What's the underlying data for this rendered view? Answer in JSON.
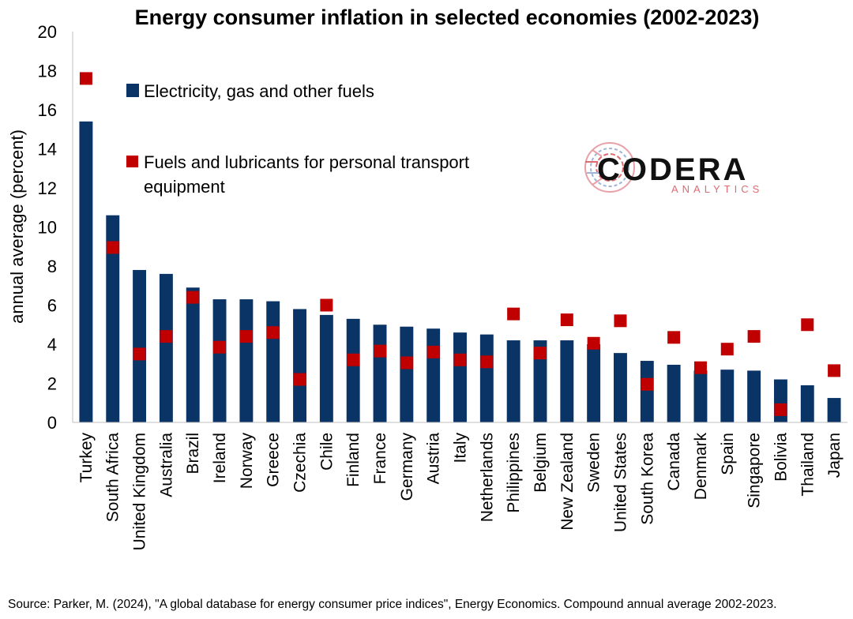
{
  "chart_data": {
    "type": "bar",
    "title": "Energy consumer inflation in selected economies (2002-2023)",
    "ylabel": "annual average (percent)",
    "xlabel": "",
    "ylim": [
      0,
      20
    ],
    "yticks": [
      "0",
      "2",
      "4",
      "6",
      "8",
      "10",
      "12",
      "14",
      "16",
      "18",
      "20"
    ],
    "categories": [
      "Turkey",
      "South Africa",
      "United Kingdom",
      "Australia",
      "Brazil",
      "Ireland",
      "Norway",
      "Greece",
      "Czechia",
      "Chile",
      "Finland",
      "France",
      "Germany",
      "Austria",
      "Italy",
      "Netherlands",
      "Philippines",
      "Belgium",
      "New Zealand",
      "Sweden",
      "United States",
      "South Korea",
      "Canada",
      "Denmark",
      "Spain",
      "Singapore",
      "Bolivia",
      "Thailand",
      "Japan"
    ],
    "series": [
      {
        "name": "Electricity, gas and other fuels",
        "kind": "bar",
        "color": "#0b3466",
        "values": [
          15.4,
          10.6,
          7.8,
          7.6,
          6.9,
          6.3,
          6.3,
          6.2,
          5.8,
          5.5,
          5.3,
          5.0,
          4.9,
          4.8,
          4.6,
          4.5,
          4.2,
          4.2,
          4.2,
          4.0,
          3.55,
          3.15,
          2.95,
          2.65,
          2.7,
          2.65,
          2.2,
          1.9,
          1.25
        ]
      },
      {
        "name": "Fuels and lubricants for personal transport equipment",
        "kind": "marker",
        "color": "#c00000",
        "values": [
          17.6,
          8.95,
          3.5,
          4.4,
          6.4,
          3.85,
          4.4,
          4.6,
          2.2,
          6.0,
          3.2,
          3.65,
          3.05,
          3.6,
          3.2,
          3.1,
          5.55,
          3.55,
          5.25,
          4.05,
          5.2,
          1.95,
          4.35,
          2.8,
          3.75,
          4.4,
          0.65,
          5.0,
          2.65
        ]
      }
    ],
    "grid": false,
    "legend_position": "top-left"
  },
  "logo": {
    "name": "CODERA",
    "subtitle": "ANALYTICS"
  },
  "source": "Source: Parker, M. (2024), \"A global database for energy consumer price indices\", Energy Economics. Compound annual average 2002-2023."
}
